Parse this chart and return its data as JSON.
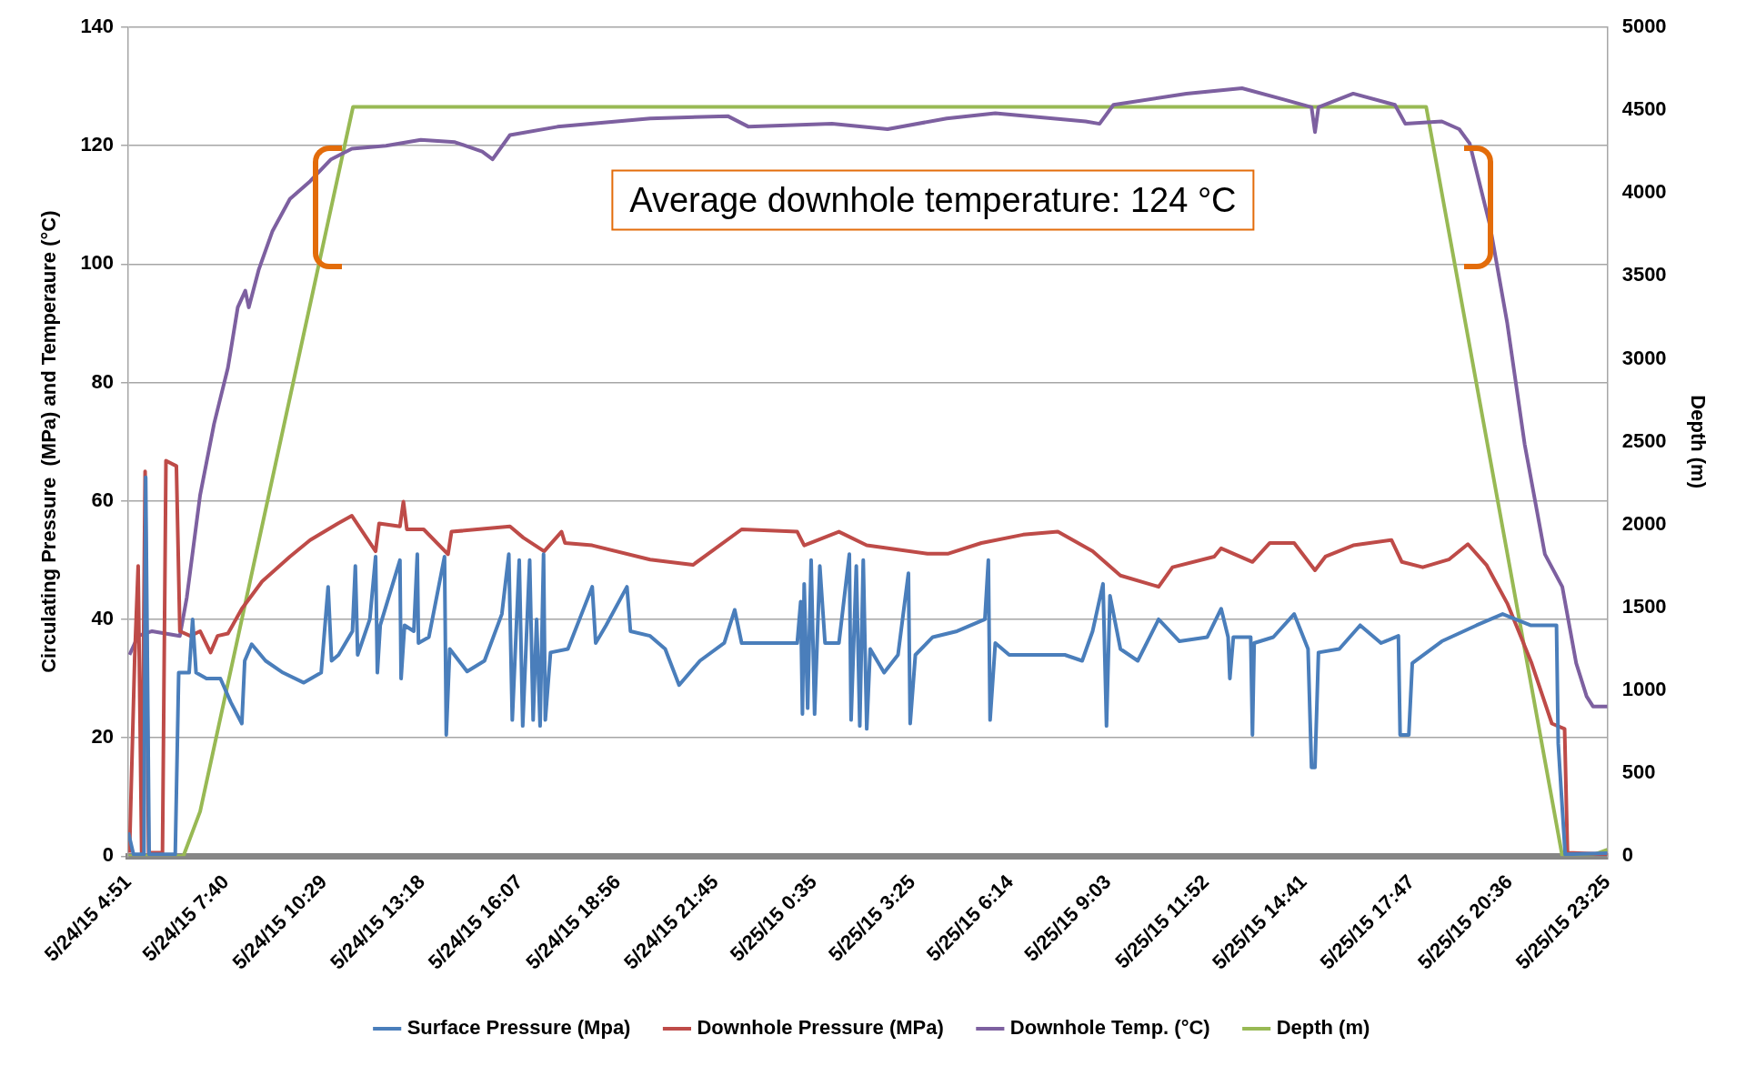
{
  "chart_data": {
    "type": "line",
    "ylabel": "Circulating Pressure  (MPa) and Temperaure (°C)",
    "y2label": "Depth (m)",
    "annotations": [
      "Average downhole temperature: 124 °C"
    ],
    "xlim": [
      "--05-24T04:51",
      "--05-25T23:25"
    ],
    "xticks": [
      {
        "value": "--05-24T04:51",
        "label": "5/24/15 4:51"
      },
      {
        "value": "--05-24T07:40",
        "label": "5/24/15 7:40"
      },
      {
        "value": "--05-24T10:29",
        "label": "5/24/15 10:29"
      },
      {
        "value": "--05-24T13:18",
        "label": "5/24/15 13:18"
      },
      {
        "value": "--05-24T16:07",
        "label": "5/24/15 16:07"
      },
      {
        "value": "--05-24T18:56",
        "label": "5/24/15 18:56"
      },
      {
        "value": "--05-24T21:45",
        "label": "5/24/15 21:45"
      },
      {
        "value": "--05-25T00:35",
        "label": "5/25/15 0:35"
      },
      {
        "value": "--05-25T03:25",
        "label": "5/25/15 3:25"
      },
      {
        "value": "--05-25T06:14",
        "label": "5/25/15 6:14"
      },
      {
        "value": "--05-25T09:03",
        "label": "5/25/15 9:03"
      },
      {
        "value": "--05-25T11:52",
        "label": "5/25/15 11:52"
      },
      {
        "value": "--05-25T14:41",
        "label": "5/25/15 14:41"
      },
      {
        "value": "--05-25T17:47",
        "label": "5/25/15 17:47"
      },
      {
        "value": "--05-25T20:36",
        "label": "5/25/15 20:36"
      },
      {
        "value": "--05-25T23:25",
        "label": "5/25/15 23:25"
      }
    ],
    "ylim": [
      0,
      140
    ],
    "yticks": [
      0,
      20,
      40,
      60,
      80,
      100,
      120,
      140
    ],
    "y2lim": [
      0,
      5000
    ],
    "y2ticks": [
      0,
      500,
      1000,
      1500,
      2000,
      2500,
      3000,
      3500,
      4000,
      4500,
      5000
    ],
    "grid": "y",
    "legend": "bottom",
    "marker": "none",
    "series": [
      {
        "name": "Surface Pressure (Mpa)",
        "color": "#4a7ebb",
        "x": [
          "--05-24T04:51",
          "--05-24T05:00",
          "--05-24T05:18",
          "--05-24T05:21",
          "--05-24T05:27",
          "--05-24T06:12",
          "--05-24T06:18",
          "--05-24T06:36",
          "--05-24T06:42",
          "--05-24T06:48",
          "--05-24T07:06",
          "--05-24T07:30",
          "--05-24T07:48",
          "--05-24T08:07",
          "--05-24T08:12",
          "--05-24T08:24",
          "--05-24T08:48",
          "--05-24T09:18",
          "--05-24T09:54",
          "--05-24T10:24",
          "--05-24T10:36",
          "--05-24T10:42",
          "--05-24T10:54",
          "--05-24T11:18",
          "--05-24T11:23",
          "--05-24T11:27",
          "--05-24T11:48",
          "--05-24T11:58",
          "--05-24T12:01",
          "--05-24T12:06",
          "--05-24T12:40",
          "--05-24T12:42",
          "--05-24T12:48",
          "--05-24T13:04",
          "--05-24T13:10",
          "--05-24T13:12",
          "--05-24T13:30",
          "--05-24T13:57",
          "--05-24T14:00",
          "--05-24T14:06",
          "--05-24T14:36",
          "--05-24T15:06",
          "--05-24T15:36",
          "--05-24T15:48",
          "--05-24T15:54",
          "--05-24T16:06",
          "--05-24T16:12",
          "--05-24T16:24",
          "--05-24T16:30",
          "--05-24T16:36",
          "--05-24T16:42",
          "--05-24T16:48",
          "--05-24T16:51",
          "--05-24T17:00",
          "--05-24T17:30",
          "--05-24T18:12",
          "--05-24T18:18",
          "--05-24T18:36",
          "--05-24T19:12",
          "--05-24T19:18",
          "--05-24T19:52",
          "--05-24T20:18",
          "--05-24T20:42",
          "--05-24T21:18",
          "--05-24T22:00",
          "--05-24T22:18",
          "--05-24T22:30",
          "--05-24T23:24",
          "--05-25T00:06",
          "--05-25T00:12",
          "--05-25T00:15",
          "--05-25T00:18",
          "--05-25T00:24",
          "--05-25T00:30",
          "--05-25T00:36",
          "--05-25T00:45",
          "--05-25T00:54",
          "--05-25T01:18",
          "--05-25T01:36",
          "--05-25T01:39",
          "--05-25T01:48",
          "--05-25T01:54",
          "--05-25T02:00",
          "--05-25T02:06",
          "--05-25T02:12",
          "--05-25T02:36",
          "--05-25T03:00",
          "--05-25T03:18",
          "--05-25T03:21",
          "--05-25T03:30",
          "--05-25T04:00",
          "--05-25T04:42",
          "--05-25T05:30",
          "--05-25T05:36",
          "--05-25T05:39",
          "--05-25T05:48",
          "--05-25T06:12",
          "--05-25T07:00",
          "--05-25T07:48",
          "--05-25T08:18",
          "--05-25T08:36",
          "--05-25T08:54",
          "--05-25T09:00",
          "--05-25T09:06",
          "--05-25T09:24",
          "--05-25T09:54",
          "--05-25T10:30",
          "--05-25T11:06",
          "--05-25T11:54",
          "--05-25T12:18",
          "--05-25T12:30",
          "--05-25T12:33",
          "--05-25T12:39",
          "--05-25T13:09",
          "--05-25T13:12",
          "--05-25T13:15",
          "--05-25T13:48",
          "--05-25T14:24",
          "--05-25T14:48",
          "--05-25T14:54",
          "--05-25T15:00",
          "--05-25T15:06",
          "--05-25T15:42",
          "--05-25T16:18",
          "--05-25T16:54",
          "--05-25T17:24",
          "--05-25T17:27",
          "--05-25T17:42",
          "--05-25T17:48",
          "--05-25T18:39",
          "--05-25T19:39",
          "--05-25T20:24",
          "--05-25T21:12",
          "--05-25T21:57",
          "--05-25T22:00",
          "--05-25T22:12",
          "--05-25T23:25"
        ],
        "values": [
          4,
          0.3,
          0.3,
          64,
          0.3,
          0.3,
          31,
          31,
          40,
          31,
          30,
          30,
          26,
          22.4,
          33,
          35.8,
          33,
          31,
          29.3,
          31,
          45.5,
          33,
          34,
          38,
          49,
          34,
          40,
          50.6,
          31,
          39,
          50,
          30,
          39,
          38,
          51,
          36,
          37,
          50.6,
          20.5,
          35,
          31.2,
          33,
          40.9,
          51,
          23,
          50,
          22,
          50,
          23,
          40,
          22,
          51,
          23,
          34.4,
          35,
          45.5,
          36,
          39,
          45.5,
          38,
          37.2,
          35,
          28.9,
          33,
          36,
          41.6,
          36,
          36,
          36,
          43,
          24,
          46,
          25,
          50,
          24,
          49,
          36,
          36,
          51,
          23,
          49,
          22,
          50,
          21.5,
          35,
          31,
          34,
          47.8,
          22.4,
          34,
          37,
          38,
          40,
          50,
          23,
          36,
          34,
          34,
          34,
          33,
          38,
          46,
          22,
          44,
          35,
          33,
          40,
          36.3,
          37,
          41.8,
          37,
          30,
          37,
          37,
          20.5,
          36,
          37,
          40.9,
          35,
          15,
          15,
          34.4,
          35,
          39,
          36,
          37.2,
          20.5,
          20.5,
          32.6,
          36.3,
          39,
          40.9,
          39,
          39,
          19,
          0.3,
          0.5
        ]
      },
      {
        "name": "Downhole Pressure (MPa)",
        "color": "#be4b48",
        "x": [
          "--05-24T04:53",
          "--05-24T05:02",
          "--05-24T05:08",
          "--05-24T05:14",
          "--05-24T05:20",
          "--05-24T05:26",
          "--05-24T05:50",
          "--05-24T05:56",
          "--05-24T06:14",
          "--05-24T06:20",
          "--05-24T06:38",
          "--05-24T06:55",
          "--05-24T07:13",
          "--05-24T07:25",
          "--05-24T07:43",
          "--05-24T08:07",
          "--05-24T08:42",
          "--05-24T09:30",
          "--05-24T10:05",
          "--05-24T10:53",
          "--05-24T11:17",
          "--05-24T11:58",
          "--05-24T12:04",
          "--05-24T12:40",
          "--05-24T12:46",
          "--05-24T12:52",
          "--05-24T13:21",
          "--05-24T14:03",
          "--05-24T14:09",
          "--05-24T15:50",
          "--05-24T16:13",
          "--05-24T16:49",
          "--05-24T17:19",
          "--05-24T17:25",
          "--05-24T18:12",
          "--05-24T19:52",
          "--05-24T21:06",
          "--05-24T22:30",
          "--05-25T00:06",
          "--05-25T00:18",
          "--05-25T01:18",
          "--05-25T02:06",
          "--05-25T03:51",
          "--05-25T04:27",
          "--05-25T05:24",
          "--05-25T06:36",
          "--05-25T07:36",
          "--05-25T08:36",
          "--05-25T09:24",
          "--05-25T10:30",
          "--05-25T10:54",
          "--05-25T12:06",
          "--05-25T12:18",
          "--05-25T13:12",
          "--05-25T13:42",
          "--05-25T14:24",
          "--05-25T15:00",
          "--05-25T15:18",
          "--05-25T16:06",
          "--05-25T17:12",
          "--05-25T17:30",
          "--05-25T18:06",
          "--05-25T18:51",
          "--05-25T19:24",
          "--05-25T19:56",
          "--05-25T20:32",
          "--05-25T21:14",
          "--05-25T21:49",
          "--05-25T22:11",
          "--05-25T22:16",
          "--05-25T23:25"
        ],
        "values": [
          0.6,
          33.5,
          49,
          0.6,
          65,
          0.6,
          0.6,
          66.8,
          65.9,
          38,
          37.2,
          38,
          34.4,
          37.2,
          37.6,
          41.8,
          46.4,
          50.6,
          53.4,
          56.2,
          57.5,
          51.5,
          56.2,
          55.7,
          59.9,
          55.2,
          55.2,
          51,
          54.8,
          55.7,
          53.8,
          51.5,
          54.8,
          52.9,
          52.5,
          50.1,
          49.2,
          55.2,
          54.8,
          52.5,
          54.8,
          52.5,
          51.1,
          51.1,
          52.9,
          54.3,
          54.8,
          51.5,
          47.4,
          45.5,
          48.8,
          50.6,
          52,
          49.7,
          52.9,
          52.9,
          48.3,
          50.6,
          52.5,
          53.4,
          49.7,
          48.8,
          50.1,
          52.7,
          49.2,
          42.7,
          32.6,
          22.4,
          21.5,
          0.6,
          0.3
        ]
      },
      {
        "name": "Downhole Temp. (°C)",
        "color": "#7d60a0",
        "x": [
          "--05-24T04:53",
          "--05-24T05:08",
          "--05-24T05:32",
          "--05-24T06:20",
          "--05-24T06:32",
          "--05-24T06:55",
          "--05-24T07:19",
          "--05-24T07:43",
          "--05-24T08:00",
          "--05-24T08:13",
          "--05-24T08:19",
          "--05-24T08:36",
          "--05-24T09:00",
          "--05-24T09:30",
          "--05-24T10:05",
          "--05-24T10:41",
          "--05-24T11:17",
          "--05-24T12:16",
          "--05-24T13:16",
          "--05-24T14:15",
          "--05-24T15:02",
          "--05-24T15:20",
          "--05-24T15:50",
          "--05-24T17:12",
          "--05-24T19:52",
          "--05-24T22:06",
          "--05-24T22:42",
          "--05-25T01:06",
          "--05-25T02:42",
          "--05-25T04:24",
          "--05-25T05:48",
          "--05-25T08:24",
          "--05-25T08:48",
          "--05-25T09:12",
          "--05-25T11:18",
          "--05-25T12:54",
          "--05-25T14:06",
          "--05-25T14:54",
          "--05-25T15:00",
          "--05-25T15:06",
          "--05-25T16:06",
          "--05-25T17:18",
          "--05-25T17:36",
          "--05-25T18:39",
          "--05-25T19:09",
          "--05-25T19:27",
          "--05-25T20:02",
          "--05-25T20:32",
          "--05-25T21:02",
          "--05-25T21:37",
          "--05-25T22:07",
          "--05-25T22:31",
          "--05-25T22:49",
          "--05-25T23:00",
          "--05-25T23:25"
        ],
        "values": [
          34,
          37.2,
          38,
          37.2,
          43.7,
          61,
          73,
          82.5,
          92.7,
          95.5,
          92.7,
          99,
          105.6,
          111,
          114,
          117.7,
          119.5,
          120,
          121,
          120.6,
          119,
          117.7,
          121.8,
          123.2,
          124.6,
          125,
          123.2,
          123.7,
          122.8,
          124.6,
          125.5,
          124.1,
          123.7,
          126.9,
          128.8,
          129.7,
          127.8,
          126.5,
          122.3,
          126.5,
          128.8,
          126.9,
          123.7,
          124.1,
          122.8,
          120.4,
          106.6,
          90,
          69.6,
          51,
          45.5,
          32.6,
          27,
          25.3,
          25.3
        ]
      },
      {
        "name": "Depth (m)",
        "color": "#98b954",
        "axis": "y2",
        "x": [
          "--05-24T04:51",
          "--05-24T06:26",
          "--05-24T06:55",
          "--05-24T11:19",
          "--05-25T18:12",
          "--05-25T22:07",
          "--05-25T22:54",
          "--05-25T23:25"
        ],
        "values": [
          0,
          0,
          270,
          4520,
          4520,
          0,
          0,
          40
        ]
      }
    ]
  }
}
